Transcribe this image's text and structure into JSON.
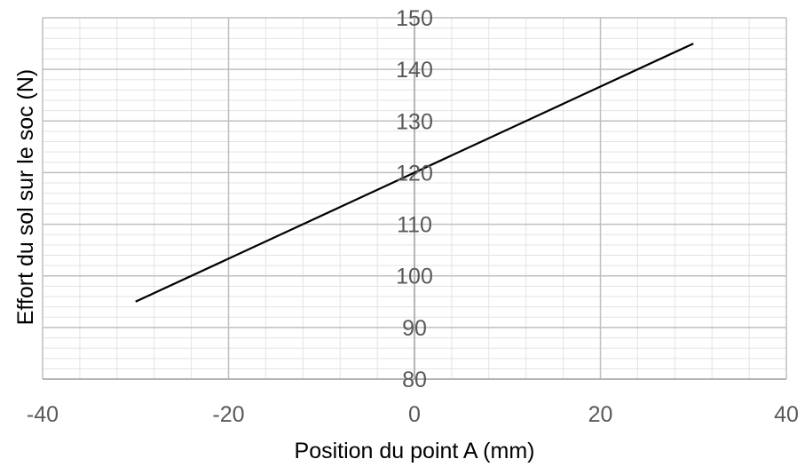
{
  "chart_data": {
    "type": "line",
    "title": "",
    "xlabel": "Position du point A (mm)",
    "ylabel": "Effort du sol sur le soc (N)",
    "xlim": [
      -40,
      40
    ],
    "ylim": [
      80,
      150
    ],
    "x_ticks": [
      "-40",
      "-20",
      "0",
      "20",
      "40"
    ],
    "y_ticks": [
      "80",
      "90",
      "100",
      "110",
      "120",
      "130",
      "140",
      "150"
    ],
    "x_major_step": 20,
    "x_minor_step": 4,
    "y_major_step": 10,
    "y_minor_step": 2,
    "grid": true,
    "legend": "none",
    "series": [
      {
        "x": [
          -30,
          30
        ],
        "y": [
          95,
          145
        ]
      }
    ],
    "colors": {
      "line": "#000000",
      "major_grid": "#bfbfbf",
      "minor_grid": "#e3e3e3",
      "axis": "#a6a6a6",
      "tick_text": "#595959",
      "title_text": "#000000"
    }
  }
}
